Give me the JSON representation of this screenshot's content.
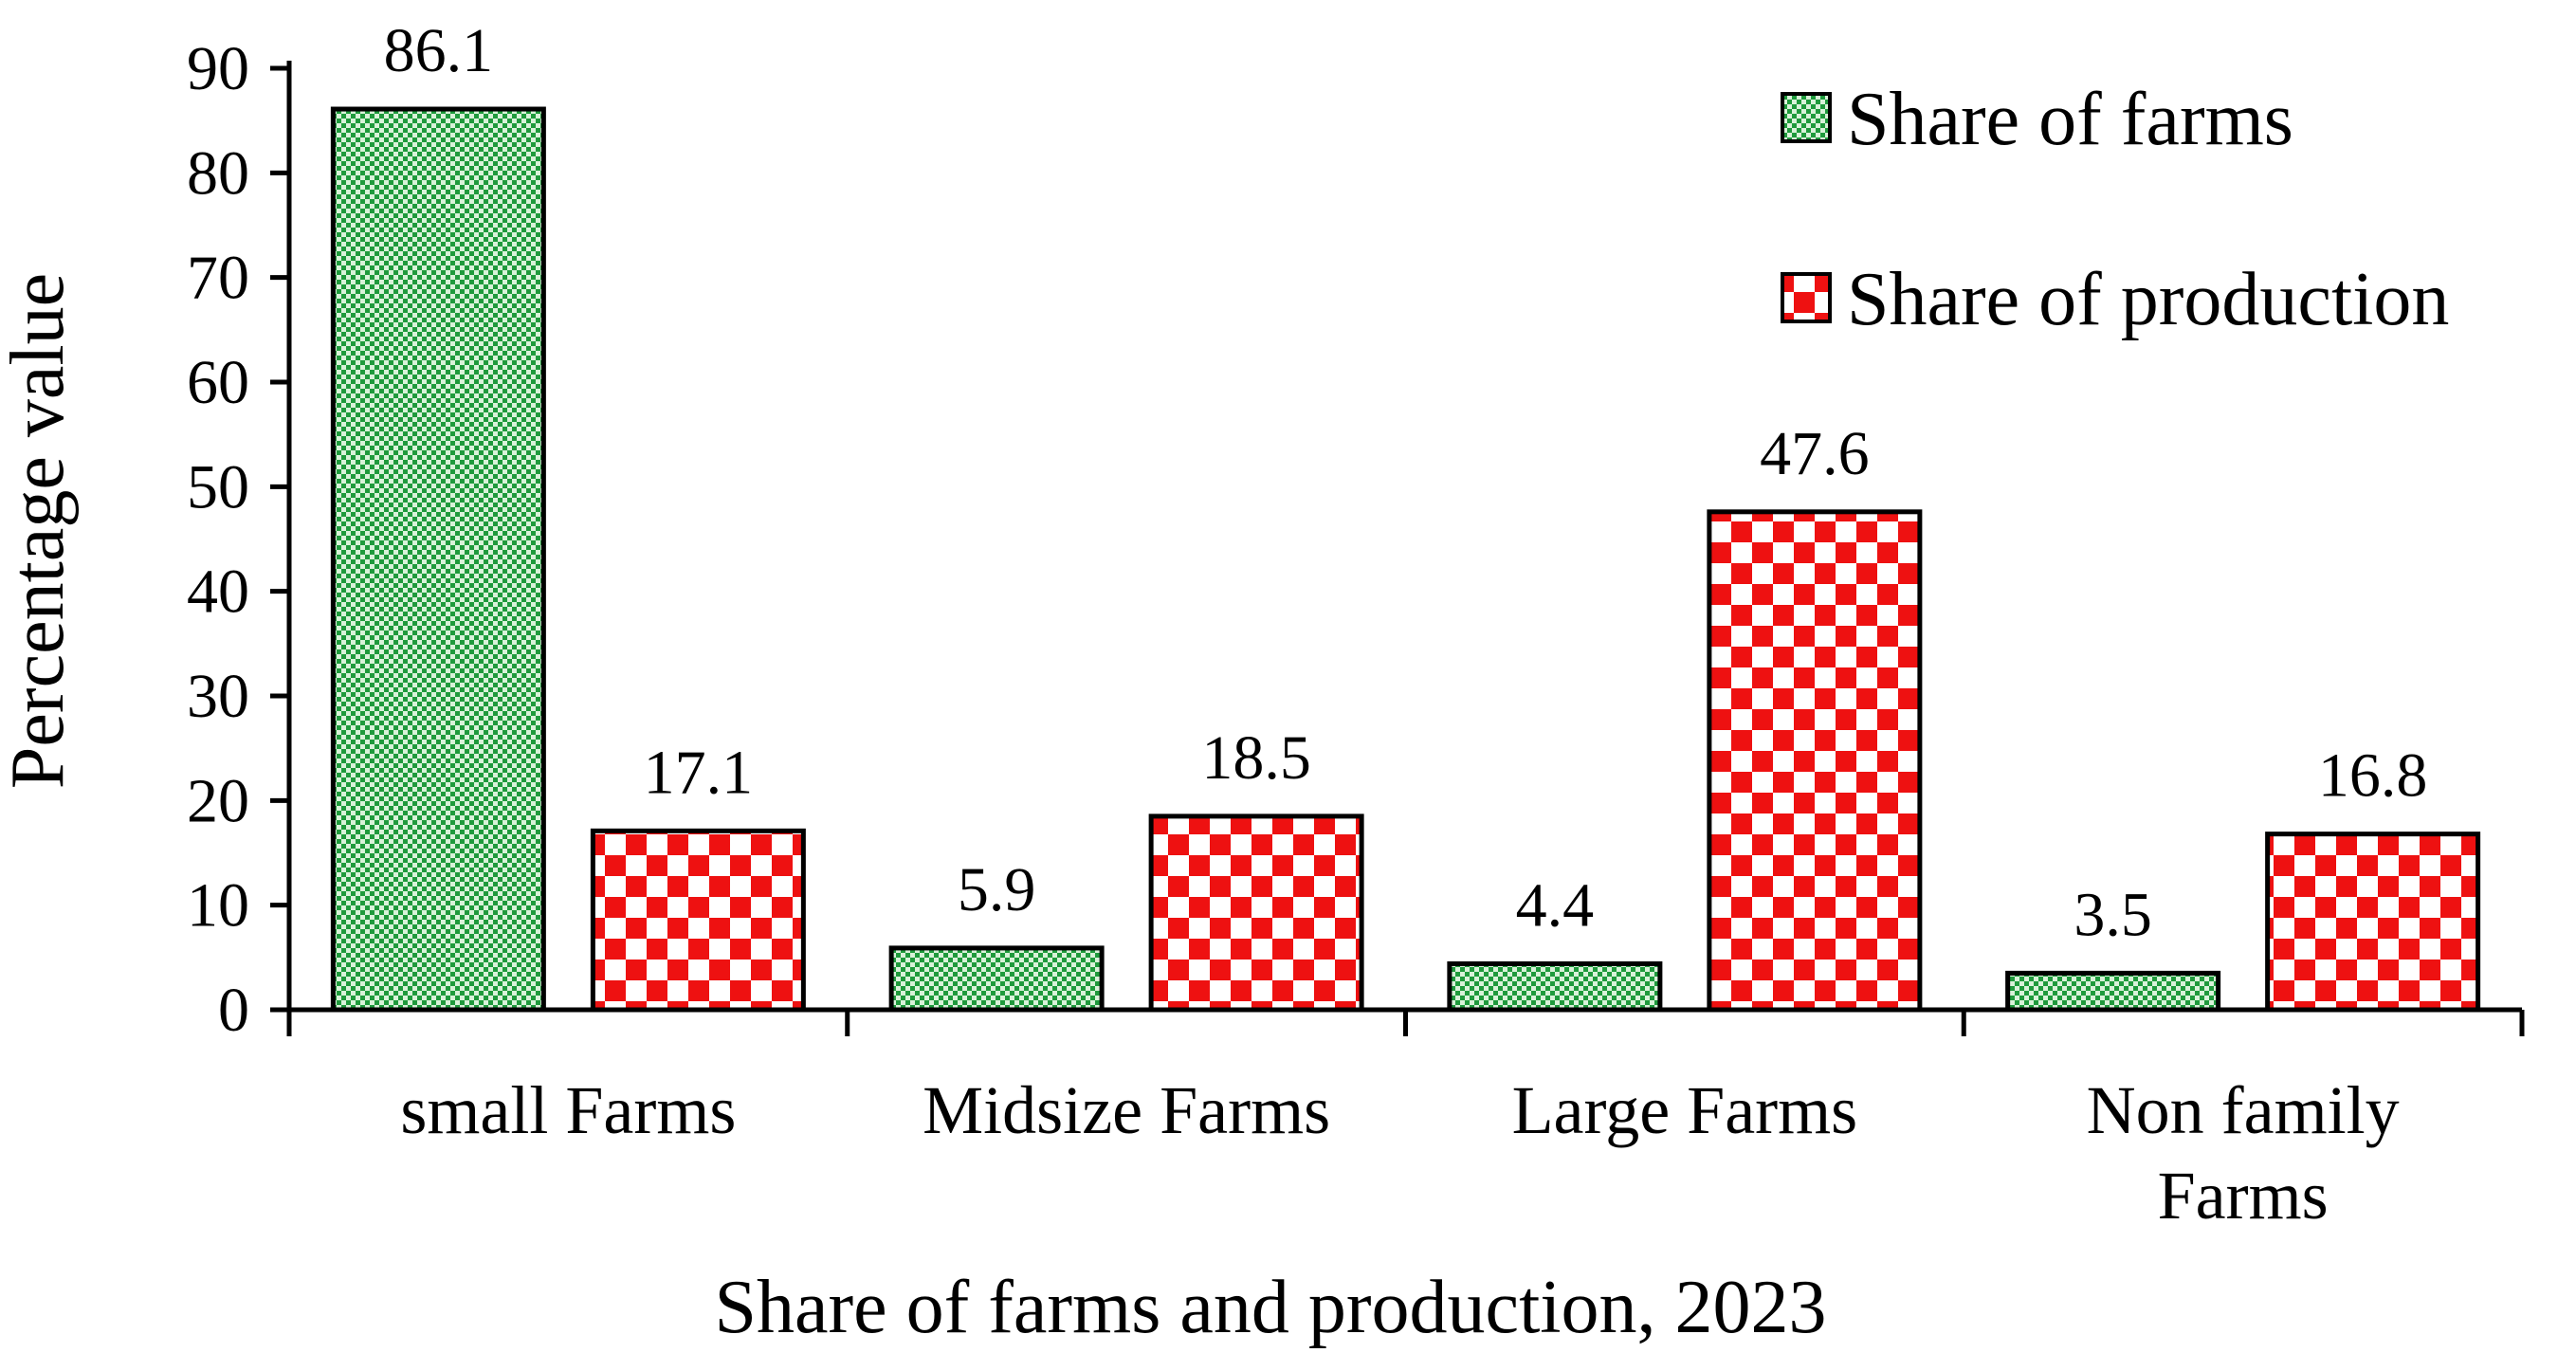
{
  "chart_data": {
    "type": "bar",
    "title": "",
    "xlabel": "Share of farms and production, 2023",
    "ylabel": "Percentage value",
    "ylim": [
      0,
      90
    ],
    "yticks": [
      0,
      10,
      20,
      30,
      40,
      50,
      60,
      70,
      80,
      90
    ],
    "categories": [
      [
        "small Farms"
      ],
      [
        "Midsize Farms"
      ],
      [
        "Large Farms"
      ],
      [
        "Non family",
        "Farms"
      ]
    ],
    "series": [
      {
        "name": "Share of farms",
        "values": [
          86.1,
          5.9,
          4.4,
          3.5
        ],
        "labels": [
          "86.1",
          "5.9",
          "4.4",
          "3.5"
        ],
        "fill": "pattern-green",
        "colors": {
          "fg": "#1f9a3c",
          "bg": "#d9f2d9"
        }
      },
      {
        "name": "Share of production",
        "values": [
          17.1,
          18.5,
          47.6,
          16.8
        ],
        "labels": [
          "17.1",
          "18.5",
          "47.6",
          "16.8"
        ],
        "fill": "pattern-red",
        "colors": {
          "fg": "#ee1111",
          "bg": "#ffffff"
        }
      }
    ],
    "legend_position": "top-right",
    "grid": false
  }
}
